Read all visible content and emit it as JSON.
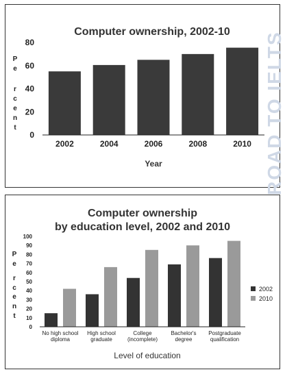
{
  "watermark": "ROAD TO IELTS",
  "chart_data": [
    {
      "type": "bar",
      "title": "Computer ownership, 2002-10",
      "xlabel": "Year",
      "ylabel": "Per cent",
      "categories": [
        "2002",
        "2004",
        "2006",
        "2008",
        "2010"
      ],
      "series": [
        {
          "values": [
            55,
            60.5,
            65,
            70,
            75.5
          ]
        }
      ],
      "ylim": [
        0,
        80
      ],
      "yticks": [
        0,
        20,
        40,
        60,
        80
      ],
      "grid": false,
      "colors": [
        "#3a3a3a"
      ]
    },
    {
      "type": "bar",
      "title": "Computer ownership by education level, 2002 and 2010",
      "title_lines": [
        "Computer ownership",
        "by education level, 2002 and 2010"
      ],
      "xlabel": "Level of education",
      "ylabel": "Per cent",
      "categories": [
        "No high school diploma",
        "High school graduate",
        "College (incomplete)",
        "Bachelor's degree",
        "Postgraduate qualification"
      ],
      "category_lines": [
        [
          "No high school",
          "diploma"
        ],
        [
          "High school",
          "graduate"
        ],
        [
          "College",
          "(incomplete)"
        ],
        [
          "Bachelor's",
          "degree"
        ],
        [
          "Postgraduate",
          "qualification"
        ]
      ],
      "series": [
        {
          "name": "2002",
          "values": [
            15,
            36,
            54,
            69,
            76
          ]
        },
        {
          "name": "2010",
          "values": [
            42,
            66,
            85,
            90,
            95
          ]
        }
      ],
      "ylim": [
        0,
        100
      ],
      "yticks": [
        0,
        10,
        20,
        30,
        40,
        50,
        60,
        70,
        80,
        90,
        100
      ],
      "grid": false,
      "legend": "right",
      "colors": [
        "#333333",
        "#9a9a9a"
      ]
    }
  ]
}
